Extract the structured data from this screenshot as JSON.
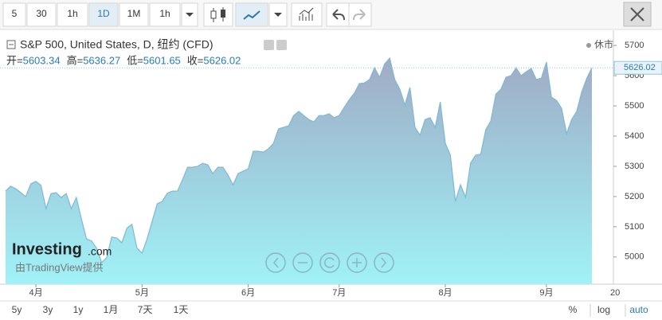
{
  "chart_data": {
    "type": "area",
    "title": "S&P 500, United States, D, 纽约 (CFD)",
    "status": "休市",
    "ohlc": [
      {
        "label": "开=",
        "value": 5603.34
      },
      {
        "label": "高=",
        "value": 5636.27
      },
      {
        "label": "低=",
        "value": 5601.65
      },
      {
        "label": "收=",
        "value": 5626.02
      }
    ],
    "categories": [
      null,
      null,
      null,
      null,
      null,
      null,
      "4月",
      null,
      null,
      null,
      null,
      null,
      null,
      null,
      null,
      null,
      null,
      null,
      null,
      null,
      null,
      null,
      null,
      null,
      null,
      null,
      null,
      "5月",
      null,
      null,
      null,
      null,
      null,
      null,
      null,
      null,
      null,
      null,
      null,
      null,
      null,
      null,
      null,
      null,
      null,
      null,
      null,
      null,
      "6月",
      null,
      null,
      null,
      null,
      null,
      null,
      null,
      null,
      null,
      null,
      null,
      null,
      null,
      null,
      null,
      null,
      null,
      "7月",
      null,
      null,
      null,
      null,
      null,
      null,
      null,
      null,
      null,
      null,
      null,
      null,
      null,
      null,
      null,
      null,
      null,
      null,
      null,
      null,
      "8月",
      null,
      null,
      null,
      null,
      null,
      null,
      null,
      null,
      null,
      null,
      null,
      null,
      null,
      null,
      null,
      null,
      null,
      null,
      null,
      "9月",
      null,
      null,
      null,
      null,
      null,
      null,
      null,
      null,
      null
    ],
    "x_axis_edge_label": "20",
    "values": [
      5218,
      5234,
      5226,
      5213,
      5200,
      5242,
      5250,
      5237,
      5160,
      5210,
      5213,
      5197,
      5210,
      5160,
      5197,
      5126,
      5060,
      5053,
      5029,
      4982,
      4997,
      5066,
      5063,
      5047,
      5095,
      5108,
      5029,
      5013,
      5060,
      5118,
      5176,
      5184,
      5211,
      5218,
      5218,
      5255,
      5297,
      5297,
      5300,
      5310,
      5305,
      5276,
      5297,
      5297,
      5271,
      5239,
      5276,
      5284,
      5292,
      5350,
      5350,
      5347,
      5358,
      5376,
      5424,
      5429,
      5434,
      5468,
      5482,
      5468,
      5455,
      5447,
      5468,
      5468,
      5474,
      5461,
      5468,
      5495,
      5521,
      5542,
      5574,
      5576,
      5587,
      5626,
      5595,
      5639,
      5658,
      5587,
      5555,
      5503,
      5561,
      5429,
      5403,
      5455,
      5461,
      5429,
      5513,
      5376,
      5337,
      5184,
      5239,
      5197,
      5311,
      5337,
      5340,
      5421,
      5450,
      5539,
      5555,
      5595,
      5600,
      5626,
      5600,
      5613,
      5624,
      5587,
      5592,
      5645,
      5529,
      5518,
      5492,
      5408,
      5455,
      5482,
      5547,
      5592,
      5626.02
    ],
    "color": "#7fb8d4",
    "ylim": [
      4910,
      5753
    ],
    "yticks": [
      5000,
      5100,
      5200,
      5300,
      5400,
      5500,
      5600,
      5700
    ],
    "grid": false,
    "watermark": {
      "brand": "Investing",
      "suffix": ".com",
      "credit": "由TradingView提供"
    }
  },
  "ui": {
    "intervals": [
      "5",
      "30",
      "1h",
      "1D",
      "1M",
      "1h"
    ],
    "active_interval": 3,
    "ranges": [
      "5y",
      "3y",
      "1y",
      "1月",
      "7天",
      "1天"
    ],
    "scale_options": [
      "%",
      "log",
      "auto"
    ]
  }
}
